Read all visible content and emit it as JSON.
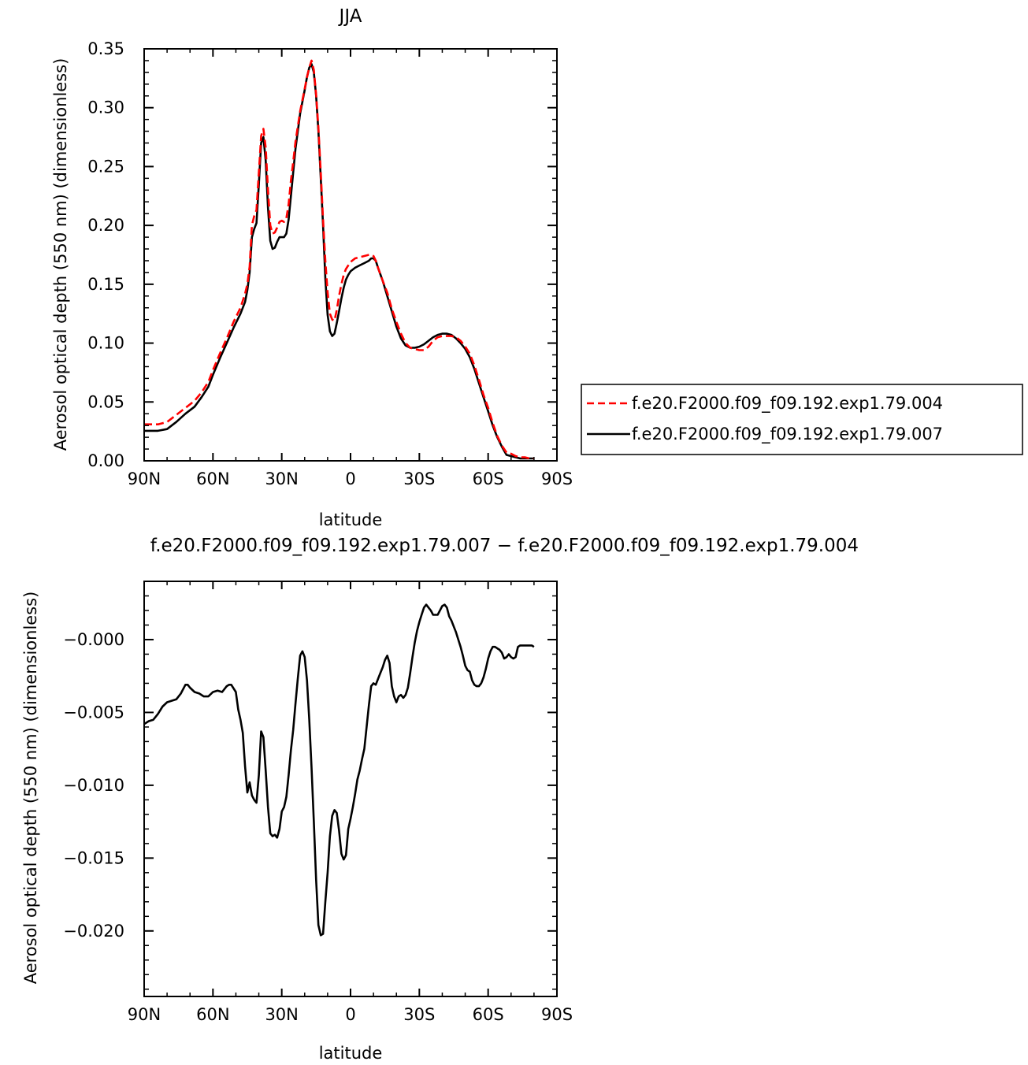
{
  "chart_data": [
    {
      "type": "line",
      "title": "JJA",
      "xlabel": "latitude",
      "ylabel": "Aerosol optical depth (550 nm) (dimensionless)",
      "xlim": [
        -90,
        90
      ],
      "ylim": [
        0,
        0.35
      ],
      "xticks": [
        -90,
        -60,
        -30,
        0,
        30,
        60,
        90
      ],
      "xtick_labels": [
        "90N",
        "60N",
        "30N",
        "0",
        "30S",
        "60S",
        "90S"
      ],
      "yticks": [
        0,
        0.05,
        0.1,
        0.15,
        0.2,
        0.25,
        0.3,
        0.35
      ],
      "ytick_labels": [
        "0.00",
        "0.05",
        "0.10",
        "0.15",
        "0.20",
        "0.25",
        "0.30",
        "0.35"
      ],
      "grid": false,
      "legend_position": "right",
      "series": [
        {
          "name": "f.e20.F2000.f09_f09.192.exp1.79.004",
          "color": "#ff0000",
          "style": "dashed",
          "x": [
            -90,
            -84,
            -80,
            -76,
            -72,
            -68,
            -65,
            -62,
            -60,
            -57,
            -54,
            -51,
            -48,
            -46,
            -45,
            -44,
            -43,
            -42,
            -41,
            -40,
            -39,
            -38,
            -37,
            -36,
            -35,
            -34,
            -33,
            -32,
            -31,
            -30,
            -29,
            -28,
            -27,
            -26,
            -25,
            -24,
            -22,
            -20,
            -19,
            -18,
            -17,
            -16,
            -15,
            -14,
            -13,
            -12,
            -11,
            -10,
            -9,
            -8,
            -7,
            -6,
            -5,
            -4,
            -3,
            -2,
            -1,
            0,
            2,
            4,
            6,
            8,
            9,
            10,
            11,
            12,
            14,
            16,
            18,
            20,
            22,
            24,
            26,
            28,
            30,
            32,
            34,
            36,
            38,
            40,
            42,
            44,
            46,
            48,
            50,
            52,
            54,
            56,
            58,
            60,
            62,
            64,
            66,
            68,
            70,
            72,
            74,
            76,
            78,
            80
          ],
          "y": [
            0.031,
            0.031,
            0.033,
            0.039,
            0.045,
            0.051,
            0.058,
            0.067,
            0.077,
            0.091,
            0.104,
            0.118,
            0.13,
            0.142,
            0.15,
            0.165,
            0.2,
            0.208,
            0.213,
            0.245,
            0.276,
            0.282,
            0.266,
            0.23,
            0.2,
            0.193,
            0.194,
            0.198,
            0.203,
            0.204,
            0.203,
            0.206,
            0.218,
            0.238,
            0.254,
            0.271,
            0.297,
            0.316,
            0.326,
            0.334,
            0.34,
            0.332,
            0.311,
            0.283,
            0.245,
            0.205,
            0.17,
            0.143,
            0.125,
            0.12,
            0.119,
            0.128,
            0.14,
            0.15,
            0.158,
            0.163,
            0.166,
            0.169,
            0.172,
            0.173,
            0.174,
            0.175,
            0.175,
            0.174,
            0.17,
            0.164,
            0.153,
            0.143,
            0.129,
            0.118,
            0.108,
            0.1,
            0.096,
            0.095,
            0.094,
            0.094,
            0.097,
            0.102,
            0.105,
            0.106,
            0.106,
            0.106,
            0.105,
            0.102,
            0.097,
            0.091,
            0.081,
            0.069,
            0.056,
            0.045,
            0.032,
            0.021,
            0.013,
            0.007,
            0.006,
            0.004,
            0.003,
            0.003,
            0.002,
            0.002
          ]
        },
        {
          "name": "f.e20.F2000.f09_f09.192.exp1.79.007",
          "color": "#000000",
          "style": "solid",
          "x": [
            -90,
            -84,
            -80,
            -76,
            -72,
            -68,
            -65,
            -62,
            -60,
            -57,
            -54,
            -51,
            -48,
            -46,
            -45,
            -44,
            -43,
            -42,
            -41,
            -40,
            -39,
            -38,
            -37,
            -36,
            -35,
            -34,
            -33,
            -32,
            -31,
            -30,
            -29,
            -28,
            -27,
            -26,
            -25,
            -24,
            -22,
            -20,
            -19,
            -18,
            -17,
            -16,
            -15,
            -14,
            -13,
            -12,
            -11,
            -10,
            -9,
            -8,
            -7,
            -6,
            -5,
            -4,
            -3,
            -2,
            -1,
            0,
            2,
            4,
            6,
            8,
            9,
            10,
            11,
            12,
            14,
            16,
            18,
            20,
            22,
            24,
            26,
            28,
            30,
            32,
            34,
            36,
            38,
            40,
            42,
            44,
            46,
            48,
            50,
            52,
            54,
            56,
            58,
            60,
            62,
            64,
            66,
            68,
            70,
            72,
            74,
            76,
            78,
            80
          ],
          "y": [
            0.0255,
            0.0255,
            0.027,
            0.033,
            0.04,
            0.046,
            0.054,
            0.063,
            0.073,
            0.087,
            0.1,
            0.113,
            0.125,
            0.135,
            0.145,
            0.16,
            0.19,
            0.197,
            0.202,
            0.235,
            0.27,
            0.275,
            0.255,
            0.215,
            0.187,
            0.18,
            0.181,
            0.186,
            0.19,
            0.19,
            0.19,
            0.193,
            0.205,
            0.225,
            0.245,
            0.265,
            0.295,
            0.315,
            0.326,
            0.334,
            0.337,
            0.33,
            0.31,
            0.28,
            0.24,
            0.2,
            0.155,
            0.124,
            0.11,
            0.106,
            0.108,
            0.117,
            0.127,
            0.138,
            0.147,
            0.154,
            0.158,
            0.161,
            0.164,
            0.166,
            0.168,
            0.17,
            0.172,
            0.172,
            0.17,
            0.164,
            0.153,
            0.14,
            0.127,
            0.114,
            0.104,
            0.098,
            0.096,
            0.096,
            0.097,
            0.099,
            0.102,
            0.105,
            0.107,
            0.108,
            0.108,
            0.107,
            0.104,
            0.1,
            0.095,
            0.088,
            0.078,
            0.066,
            0.054,
            0.042,
            0.03,
            0.02,
            0.012,
            0.005,
            0.004,
            0.003,
            0.002,
            0.002,
            0.002,
            0.002
          ]
        }
      ]
    },
    {
      "type": "line",
      "title": "f.e20.F2000.f09_f09.192.exp1.79.007 − f.e20.F2000.f09_f09.192.exp1.79.004",
      "xlabel": "latitude",
      "ylabel": "Aerosol optical depth (550 nm) (dimensionless)",
      "xlim": [
        -90,
        90
      ],
      "ylim": [
        -0.0245,
        0.004
      ],
      "xticks": [
        -90,
        -60,
        -30,
        0,
        30,
        60,
        90
      ],
      "xtick_labels": [
        "90N",
        "60N",
        "30N",
        "0",
        "30S",
        "60S",
        "90S"
      ],
      "yticks": [
        0,
        -0.005,
        -0.01,
        -0.015,
        -0.02
      ],
      "ytick_labels": [
        "−0.000",
        "−0.005",
        "−0.010",
        "−0.015",
        "−0.020"
      ],
      "grid": false,
      "series": [
        {
          "name": "",
          "color": "#000000",
          "style": "solid",
          "x": [
            -90,
            -88,
            -86,
            -84,
            -82,
            -80,
            -78,
            -76,
            -74,
            -72,
            -71,
            -70,
            -68,
            -66,
            -64,
            -62,
            -60,
            -58,
            -56,
            -54,
            -53,
            -52,
            -50,
            -49,
            -48,
            -47,
            -46,
            -45,
            -44,
            -43,
            -42,
            -41,
            -40,
            -39,
            -38,
            -37,
            -36,
            -35,
            -34,
            -33,
            -32,
            -31,
            -30,
            -29,
            -28,
            -27,
            -26,
            -25,
            -24,
            -23,
            -22,
            -21,
            -20,
            -19,
            -18,
            -17,
            -16,
            -15,
            -14,
            -13,
            -12,
            -11,
            -10,
            -9,
            -8,
            -7,
            -6,
            -5,
            -4,
            -3,
            -2,
            -1,
            0,
            1,
            2,
            3,
            4,
            5,
            6,
            7,
            8,
            9,
            10,
            11,
            12,
            13,
            14,
            15,
            16,
            17,
            18,
            19,
            20,
            21,
            22,
            23,
            24,
            25,
            26,
            27,
            28,
            29,
            30,
            31,
            32,
            33,
            34,
            35,
            36,
            37,
            38,
            39,
            40,
            41,
            42,
            43,
            44,
            45,
            46,
            47,
            48,
            49,
            50,
            51,
            52,
            53,
            54,
            55,
            56,
            57,
            58,
            59,
            60,
            61,
            62,
            63,
            64,
            65,
            66,
            67,
            68,
            69,
            70,
            71,
            72,
            73,
            74,
            75,
            76,
            77,
            78,
            79,
            80
          ],
          "y": [
            -0.0058,
            -0.0056,
            -0.0055,
            -0.0051,
            -0.0046,
            -0.0043,
            -0.0042,
            -0.0041,
            -0.0037,
            -0.0031,
            -0.0031,
            -0.0033,
            -0.0036,
            -0.0037,
            -0.0039,
            -0.0039,
            -0.0036,
            -0.0035,
            -0.0036,
            -0.0032,
            -0.0031,
            -0.0031,
            -0.0036,
            -0.0048,
            -0.0055,
            -0.0064,
            -0.0087,
            -0.0105,
            -0.0098,
            -0.0107,
            -0.011,
            -0.0112,
            -0.0093,
            -0.0063,
            -0.0067,
            -0.009,
            -0.0115,
            -0.0133,
            -0.0135,
            -0.0134,
            -0.0136,
            -0.013,
            -0.0118,
            -0.0115,
            -0.0108,
            -0.0093,
            -0.0076,
            -0.0062,
            -0.0044,
            -0.0027,
            -0.0011,
            -0.0008,
            -0.0012,
            -0.0028,
            -0.0055,
            -0.0088,
            -0.0125,
            -0.0165,
            -0.0196,
            -0.0203,
            -0.0202,
            -0.018,
            -0.016,
            -0.0135,
            -0.0121,
            -0.0117,
            -0.0119,
            -0.0131,
            -0.0147,
            -0.0151,
            -0.0148,
            -0.013,
            -0.0123,
            -0.0115,
            -0.0106,
            -0.0096,
            -0.009,
            -0.0082,
            -0.0075,
            -0.006,
            -0.0045,
            -0.0032,
            -0.003,
            -0.0031,
            -0.0027,
            -0.0023,
            -0.0019,
            -0.0014,
            -0.0011,
            -0.0016,
            -0.0032,
            -0.0039,
            -0.0043,
            -0.0039,
            -0.0038,
            -0.004,
            -0.0038,
            -0.0033,
            -0.0023,
            -0.0012,
            -0.0002,
            0.0006,
            0.0012,
            0.0017,
            0.0022,
            0.0024,
            0.0022,
            0.002,
            0.0017,
            0.0017,
            0.0017,
            0.002,
            0.0023,
            0.0024,
            0.0022,
            0.0016,
            0.0013,
            0.0009,
            0.0005,
            0.0,
            -0.0005,
            -0.0011,
            -0.0018,
            -0.0021,
            -0.0022,
            -0.0028,
            -0.0031,
            -0.0032,
            -0.0032,
            -0.003,
            -0.0026,
            -0.002,
            -0.0013,
            -0.0008,
            -0.0005,
            -0.0005,
            -0.0006,
            -0.0007,
            -0.0009,
            -0.0013,
            -0.0012,
            -0.001,
            -0.0012,
            -0.0013,
            -0.0012,
            -0.0005,
            -0.0004,
            -0.0004,
            -0.0004,
            -0.0004,
            -0.0004,
            -0.0004,
            -0.0005
          ]
        }
      ]
    }
  ]
}
